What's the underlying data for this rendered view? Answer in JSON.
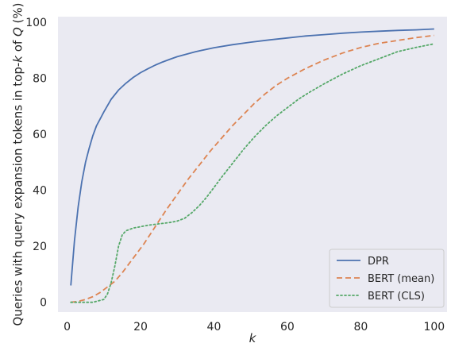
{
  "chart_data": {
    "type": "line",
    "xlabel": "k",
    "ylabel_prefix": "Queries with query expansion tokens in top-",
    "ylabel_k": "k",
    "ylabel_mid": " of ",
    "ylabel_q": "Q",
    "ylabel_suffix": " (%)",
    "xlim": [
      -2.5,
      103.5
    ],
    "ylim": [
      -3.5,
      102
    ],
    "xticks": [
      0,
      20,
      40,
      60,
      80,
      100
    ],
    "yticks": [
      0,
      20,
      40,
      60,
      80,
      100
    ],
    "grid": false,
    "legend_position": "bottom-right",
    "background": "#eaeaf2",
    "series": [
      {
        "name": "DPR",
        "color": "#4c72b0",
        "dash": "solid",
        "x": [
          1,
          2,
          3,
          4,
          5,
          6,
          7,
          8,
          9,
          10,
          12,
          14,
          16,
          18,
          20,
          22,
          24,
          26,
          28,
          30,
          35,
          40,
          45,
          50,
          55,
          60,
          65,
          70,
          75,
          80,
          85,
          90,
          95,
          100
        ],
        "y": [
          6,
          22,
          34,
          43,
          50,
          55,
          59.5,
          63,
          65.5,
          68,
          72.5,
          75.8,
          78.2,
          80.3,
          82,
          83.4,
          84.7,
          85.8,
          86.8,
          87.7,
          89.5,
          90.9,
          92,
          92.9,
          93.7,
          94.4,
          95.1,
          95.6,
          96.1,
          96.5,
          96.8,
          97.1,
          97.3,
          97.6
        ]
      },
      {
        "name": "BERT (mean)",
        "color": "#dd8452",
        "dash": "dashed",
        "x": [
          1,
          3,
          5,
          7,
          9,
          11,
          13,
          15,
          17,
          19,
          21,
          23,
          25,
          27,
          30,
          33,
          36,
          39,
          42,
          45,
          48,
          51,
          54,
          57,
          60,
          65,
          70,
          75,
          80,
          85,
          90,
          95,
          100
        ],
        "y": [
          0,
          0.3,
          1,
          2,
          3.5,
          5.5,
          7.5,
          10.5,
          14,
          17.5,
          21,
          25,
          29,
          33,
          38.5,
          44,
          49,
          54,
          58.5,
          63,
          67,
          71,
          74.5,
          77.5,
          80,
          83.5,
          86.5,
          89,
          91,
          92.5,
          93.5,
          94.5,
          95.3
        ]
      },
      {
        "name": "BERT (CLS)",
        "color": "#55a868",
        "dash": "dotted",
        "x": [
          1,
          4,
          7,
          10,
          11,
          12,
          13,
          14,
          15,
          16,
          18,
          20,
          22,
          25,
          28,
          30,
          32,
          34,
          36,
          38,
          40,
          42,
          45,
          48,
          51,
          54,
          57,
          60,
          63,
          66,
          70,
          75,
          80,
          85,
          90,
          95,
          100
        ],
        "y": [
          0,
          0,
          0,
          1,
          3,
          7,
          13,
          20,
          24,
          25.5,
          26.5,
          27,
          27.5,
          28,
          28.5,
          29,
          30,
          32,
          34.5,
          37.5,
          41,
          44.5,
          49.5,
          54.5,
          59,
          63,
          66.5,
          69.5,
          72.5,
          75,
          78,
          81.5,
          84.5,
          87,
          89.5,
          91,
          92.3
        ]
      }
    ]
  }
}
